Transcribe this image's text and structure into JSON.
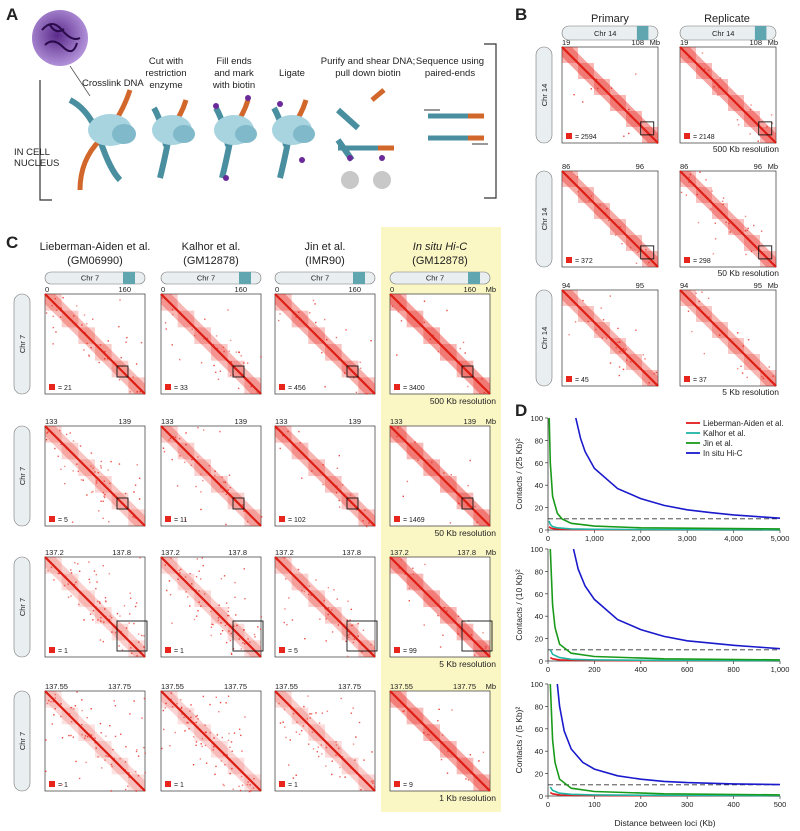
{
  "panelA": {
    "letter": "A",
    "steps": {
      "crosslink": "Crosslink DNA",
      "cut": [
        "Cut with",
        "restriction",
        "enzyme"
      ],
      "fill": [
        "Fill ends",
        "and mark",
        "with biotin"
      ],
      "ligate": "Ligate",
      "purify": [
        "Purify and shear DNA;",
        "pull down biotin"
      ],
      "sequence": [
        "Sequence using",
        "paired-ends"
      ]
    },
    "nucleus": [
      "IN CELL",
      "NUCLEUS"
    ]
  },
  "panelB": {
    "letter": "B",
    "columns": [
      "Primary",
      "Replicate"
    ],
    "chromosome": "Chr 14",
    "rows": [
      {
        "start": "19",
        "end": "108",
        "unit": "Mb",
        "counts": [
          "= 2594",
          "= 2148"
        ],
        "resolution": "500 Kb resolution"
      },
      {
        "start": "86",
        "end": "96",
        "unit": "Mb",
        "counts": [
          "= 372",
          "= 298"
        ],
        "resolution": "50 Kb resolution"
      },
      {
        "start": "94",
        "end": "95",
        "unit": "Mb",
        "counts": [
          "= 45",
          "= 37"
        ],
        "resolution": "5 Kb resolution"
      }
    ]
  },
  "panelC": {
    "letter": "C",
    "chromosome": "Chr 7",
    "columns": [
      {
        "title": "Lieberman-Aiden et al.",
        "sub": "(GM06990)",
        "italic": false
      },
      {
        "title": "Kalhor et al.",
        "sub": "(GM12878)",
        "italic": false
      },
      {
        "title": "Jin et al.",
        "sub": "(IMR90)",
        "italic": false
      },
      {
        "title": "In situ Hi-C",
        "sub": "(GM12878)",
        "italic": true
      }
    ],
    "rows": [
      {
        "start": "0",
        "end": "160",
        "unit": "Mb",
        "counts": [
          "= 21",
          "= 33",
          "= 456",
          "= 3400"
        ],
        "resolution": "500 Kb resolution"
      },
      {
        "start": "133",
        "end": "139",
        "unit": "Mb",
        "counts": [
          "= 5",
          "= 11",
          "= 102",
          "= 1469"
        ],
        "resolution": "50 Kb resolution"
      },
      {
        "start": "137.2",
        "end": "137.8",
        "unit": "Mb",
        "counts": [
          "= 1",
          "= 1",
          "= 5",
          "= 99"
        ],
        "resolution": "5 Kb resolution"
      },
      {
        "start": "137.55",
        "end": "137.75",
        "unit": "Mb",
        "counts": [
          "= 1",
          "= 1",
          "= 1",
          "= 9"
        ],
        "resolution": "1 Kb resolution"
      }
    ]
  },
  "panelD": {
    "letter": "D",
    "xlabel": "Distance between loci (Kb)",
    "legend": [
      {
        "name": "Lieberman-Aiden et al.",
        "color": "#e41a1c"
      },
      {
        "name": "Kalhor et al.",
        "color": "#1fb5a6"
      },
      {
        "name": "Jin et al.",
        "color": "#1a9a1a"
      },
      {
        "name": "In situ Hi-C",
        "color": "#1a1acc",
        "italic_part": "In situ"
      }
    ]
  },
  "chart_data": [
    {
      "type": "line",
      "ylabel": "Contacts / (25 Kb)²",
      "xlim": [
        0,
        5000
      ],
      "ylim": [
        0,
        100
      ],
      "xticks": [
        "0",
        "1,000",
        "2,000",
        "3,000",
        "4,000",
        "5,000"
      ],
      "yticks": [
        "0",
        "20",
        "40",
        "60",
        "80",
        "100"
      ],
      "reference_line_y": 10,
      "series": [
        {
          "name": "Lieberman-Aiden et al.",
          "x": [
            25,
            50,
            100,
            200,
            500,
            1000,
            2000,
            5000
          ],
          "y": [
            3,
            2,
            1.3,
            0.8,
            0.4,
            0.3,
            0.2,
            0.1
          ]
        },
        {
          "name": "Kalhor et al.",
          "x": [
            25,
            50,
            100,
            200,
            500,
            1000,
            2000,
            5000
          ],
          "y": [
            8,
            5,
            3,
            2,
            1,
            0.6,
            0.4,
            0.2
          ]
        },
        {
          "name": "Jin et al.",
          "x": [
            25,
            50,
            100,
            200,
            300,
            500,
            1000,
            2000,
            5000
          ],
          "y": [
            100,
            60,
            30,
            15,
            10,
            6,
            3.5,
            2,
            1
          ]
        },
        {
          "name": "In situ Hi-C",
          "x": [
            600,
            700,
            800,
            1000,
            1500,
            2000,
            2500,
            3000,
            3500,
            4000,
            4500,
            5000
          ],
          "y": [
            100,
            82,
            70,
            55,
            37,
            28,
            22,
            18,
            15.5,
            13.5,
            12,
            10.5
          ]
        }
      ]
    },
    {
      "type": "line",
      "ylabel": "Contacts / (10 Kb)²",
      "xlim": [
        0,
        1000
      ],
      "ylim": [
        0,
        100
      ],
      "xticks": [
        "0",
        "200",
        "400",
        "600",
        "800",
        "1,000"
      ],
      "yticks": [
        "0",
        "20",
        "40",
        "60",
        "80",
        "100"
      ],
      "reference_line_y": 10,
      "series": [
        {
          "name": "Lieberman-Aiden et al.",
          "x": [
            10,
            20,
            50,
            100,
            200,
            500,
            1000
          ],
          "y": [
            3,
            2,
            1,
            0.6,
            0.4,
            0.2,
            0.1
          ]
        },
        {
          "name": "Kalhor et al.",
          "x": [
            10,
            20,
            50,
            100,
            200,
            500,
            1000
          ],
          "y": [
            10,
            6,
            3,
            1.5,
            1,
            0.5,
            0.3
          ]
        },
        {
          "name": "Jin et al.",
          "x": [
            10,
            20,
            30,
            50,
            100,
            200,
            500,
            1000
          ],
          "y": [
            100,
            50,
            30,
            15,
            7,
            4,
            2,
            1
          ]
        },
        {
          "name": "In situ Hi-C",
          "x": [
            110,
            130,
            160,
            200,
            300,
            400,
            500,
            600,
            700,
            800,
            900,
            1000
          ],
          "y": [
            100,
            82,
            67,
            55,
            37,
            28,
            22,
            18,
            16,
            14,
            12.5,
            11
          ]
        }
      ]
    },
    {
      "type": "line",
      "ylabel": "Contacts / (5 Kb)²",
      "xlim": [
        0,
        500
      ],
      "ylim": [
        0,
        100
      ],
      "xticks": [
        "0",
        "100",
        "200",
        "300",
        "400",
        "500"
      ],
      "yticks": [
        "0",
        "20",
        "40",
        "60",
        "80",
        "100"
      ],
      "reference_line_y": 10,
      "series": [
        {
          "name": "Lieberman-Aiden et al.",
          "x": [
            5,
            10,
            25,
            50,
            100,
            250,
            500
          ],
          "y": [
            3,
            2,
            1,
            0.6,
            0.4,
            0.2,
            0.1
          ]
        },
        {
          "name": "Kalhor et al.",
          "x": [
            5,
            10,
            25,
            50,
            100,
            250,
            500
          ],
          "y": [
            8,
            5,
            2.5,
            1.5,
            1,
            0.5,
            0.3
          ]
        },
        {
          "name": "Jin et al.",
          "x": [
            5,
            10,
            15,
            25,
            50,
            100,
            250,
            500
          ],
          "y": [
            100,
            50,
            30,
            15,
            7,
            4,
            2,
            1
          ]
        },
        {
          "name": "In situ Hi-C",
          "x": [
            20,
            25,
            35,
            50,
            75,
            100,
            150,
            200,
            250,
            300,
            400,
            500
          ],
          "y": [
            100,
            80,
            58,
            42,
            30,
            24,
            18,
            15,
            13,
            12,
            10.8,
            10.2
          ]
        }
      ]
    }
  ]
}
